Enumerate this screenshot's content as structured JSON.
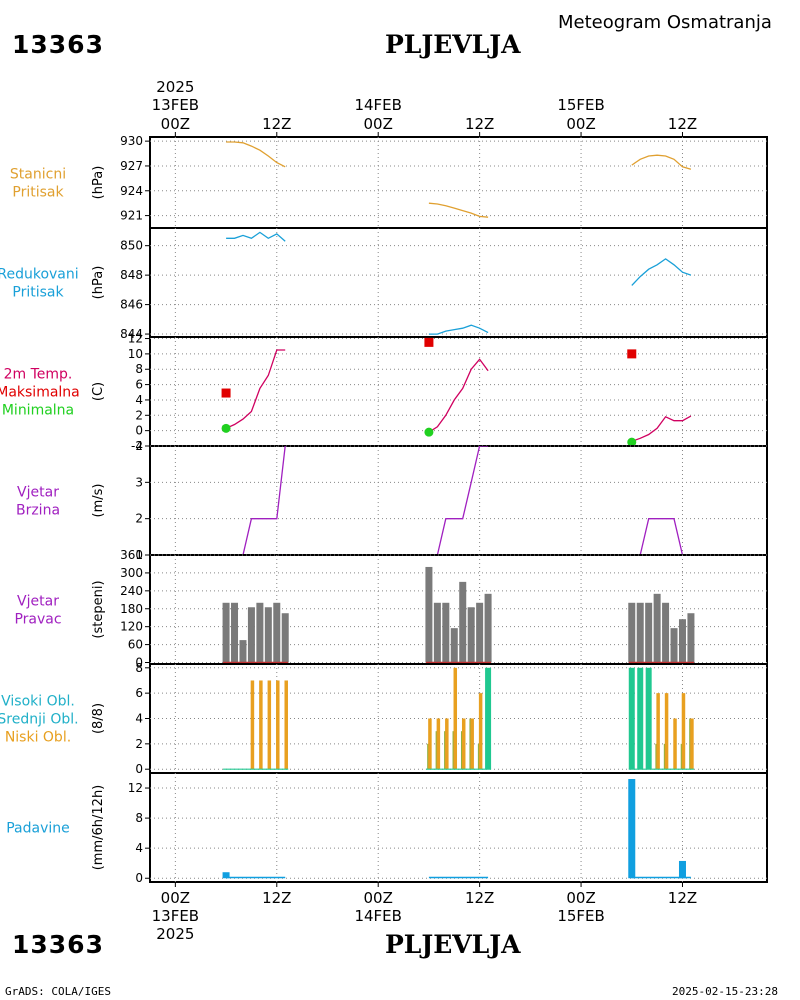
{
  "header": {
    "station_id": "13363",
    "station_name": "PLJEVLJA",
    "title": "Meteogram Osmatranja",
    "year": "2025"
  },
  "footer": {
    "station_id": "13363",
    "station_name": "PLJEVLJA",
    "credit": "GrADS: COLA/IGES",
    "timestamp": "2025-02-15-23:28",
    "year": "2025"
  },
  "time_axis": {
    "day_labels": [
      "13FEB",
      "14FEB",
      "15FEB"
    ],
    "ticks": [
      {
        "hour": 0,
        "label": "00Z",
        "day": "13FEB"
      },
      {
        "hour": 12,
        "label": "12Z",
        "day": ""
      },
      {
        "hour": 24,
        "label": "00Z",
        "day": "14FEB"
      },
      {
        "hour": 36,
        "label": "12Z",
        "day": ""
      },
      {
        "hour": 48,
        "label": "00Z",
        "day": "15FEB"
      },
      {
        "hour": 60,
        "label": "12Z",
        "day": ""
      }
    ],
    "range_hours": [
      -3,
      70
    ]
  },
  "colors": {
    "orange": "#e0a030",
    "cyan": "#1aa0d8",
    "red": "#e00000",
    "green": "#20d020",
    "magenta": "#a020c0",
    "crimson": "#d00060",
    "grey": "#7a7a7a",
    "teal": "#20c890",
    "gold": "#e8a020",
    "olive": "#90b040",
    "blue": "#109fe0",
    "darkred": "#c03030"
  },
  "chart_data": [
    {
      "id": "pressure-station",
      "type": "line",
      "labels": [
        {
          "text": "Stanicni",
          "color": "#e0a030"
        },
        {
          "text": "Pritisak",
          "color": "#e0a030"
        }
      ],
      "ylabel": "(hPa)",
      "ylim": [
        919.5,
        930.5
      ],
      "yticks": [
        921,
        924,
        927,
        930
      ],
      "series": [
        {
          "color": "#e0a030",
          "x": [
            6,
            7,
            8,
            9,
            10,
            11,
            12,
            13
          ],
          "y": [
            929.9,
            929.9,
            929.8,
            929.4,
            928.9,
            928.2,
            927.4,
            926.9
          ]
        },
        {
          "color": "#e0a030",
          "x": [
            30,
            31,
            32,
            33,
            34,
            35,
            36,
            37
          ],
          "y": [
            922.5,
            922.4,
            922.2,
            921.9,
            921.6,
            921.3,
            920.9,
            920.8
          ]
        },
        {
          "color": "#e0a030",
          "x": [
            54,
            55,
            56,
            57,
            58,
            59,
            60,
            61
          ],
          "y": [
            927.1,
            927.8,
            928.2,
            928.3,
            928.2,
            927.8,
            926.9,
            926.6
          ]
        }
      ]
    },
    {
      "id": "pressure-reduced",
      "type": "line",
      "labels": [
        {
          "text": "Redukovani",
          "color": "#1aa0d8"
        },
        {
          "text": "Pritisak",
          "color": "#1aa0d8"
        }
      ],
      "ylabel": "(hPa)",
      "ylim": [
        843.8,
        851.2
      ],
      "yticks": [
        844,
        846,
        848,
        850
      ],
      "series": [
        {
          "color": "#1aa0d8",
          "x": [
            6,
            7,
            8,
            9,
            10,
            11,
            12,
            13
          ],
          "y": [
            850.5,
            850.5,
            850.7,
            850.5,
            850.9,
            850.5,
            850.8,
            850.3
          ]
        },
        {
          "color": "#1aa0d8",
          "x": [
            30,
            31,
            32,
            33,
            34,
            35,
            36,
            37
          ],
          "y": [
            844.0,
            844.0,
            844.2,
            844.3,
            844.4,
            844.6,
            844.4,
            844.1
          ]
        },
        {
          "color": "#1aa0d8",
          "x": [
            54,
            55,
            56,
            57,
            58,
            59,
            60,
            61
          ],
          "y": [
            847.3,
            847.9,
            848.4,
            848.7,
            849.1,
            848.7,
            848.2,
            848.0
          ]
        }
      ]
    },
    {
      "id": "temperature",
      "type": "line",
      "labels": [
        {
          "text": "2m Temp.",
          "color": "#d00060"
        },
        {
          "text": "Maksimalna",
          "color": "#e00000"
        },
        {
          "text": "Minimalna",
          "color": "#20d020"
        }
      ],
      "ylabel": "(C)",
      "ylim": [
        -2,
        12.2
      ],
      "yticks": [
        -2,
        0,
        2,
        4,
        6,
        8,
        10,
        12
      ],
      "series": [
        {
          "color": "#d00060",
          "x": [
            6,
            7,
            8,
            9,
            10,
            11,
            12,
            13
          ],
          "y": [
            0.3,
            0.8,
            1.5,
            2.5,
            5.5,
            7.2,
            10.5,
            10.5
          ]
        },
        {
          "color": "#d00060",
          "x": [
            30,
            31,
            32,
            33,
            34,
            35,
            36,
            37
          ],
          "y": [
            -0.2,
            0.5,
            2.0,
            4.0,
            5.5,
            8.0,
            9.3,
            7.8
          ]
        },
        {
          "color": "#d00060",
          "x": [
            54,
            55,
            56,
            57,
            58,
            59,
            60,
            61
          ],
          "y": [
            -1.4,
            -1.0,
            -0.5,
            0.3,
            1.8,
            1.3,
            1.3,
            1.9
          ]
        }
      ],
      "max_points": {
        "x": [
          6,
          30,
          54
        ],
        "y": [
          4.9,
          11.5,
          10.0
        ],
        "color": "#e00000"
      },
      "min_points": {
        "x": [
          6,
          30,
          54
        ],
        "y": [
          0.3,
          -0.2,
          -1.5
        ],
        "color": "#20d020"
      }
    },
    {
      "id": "wind-speed",
      "type": "line",
      "labels": [
        {
          "text": "Vjetar",
          "color": "#a020c0"
        },
        {
          "text": "Brzina",
          "color": "#a020c0"
        }
      ],
      "ylabel": "(m/s)",
      "ylim": [
        1,
        4
      ],
      "yticks": [
        1,
        2,
        3,
        4
      ],
      "series": [
        {
          "color": "#a020c0",
          "x": [
            6,
            7,
            8,
            9,
            10,
            11,
            12,
            13
          ],
          "y": [
            1,
            1,
            1,
            2,
            2,
            2,
            2,
            4
          ]
        },
        {
          "color": "#a020c0",
          "x": [
            30,
            31,
            32,
            33,
            34,
            35,
            36,
            37
          ],
          "y": [
            1,
            1,
            2,
            2,
            2,
            3,
            4,
            4
          ]
        },
        {
          "color": "#a020c0",
          "x": [
            54,
            55,
            56,
            57,
            58,
            59,
            60,
            61
          ],
          "y": [
            1,
            1,
            2,
            2,
            2,
            2,
            1,
            1
          ]
        }
      ]
    },
    {
      "id": "wind-direction",
      "type": "bar",
      "labels": [
        {
          "text": "Vjetar",
          "color": "#a020c0"
        },
        {
          "text": "Pravac",
          "color": "#a020c0"
        }
      ],
      "ylabel": "(stepeni)",
      "ylim": [
        -5,
        360
      ],
      "yticks": [
        0,
        60,
        120,
        180,
        240,
        300,
        360
      ],
      "bar_color": "#7a7a7a",
      "baseline_color": "#c03030",
      "series": [
        {
          "x": [
            6,
            7,
            8,
            9,
            10,
            11,
            12,
            13
          ],
          "y": [
            200,
            200,
            75,
            185,
            200,
            185,
            200,
            165
          ]
        },
        {
          "x": [
            30,
            31,
            32,
            33,
            34,
            35,
            36,
            37
          ],
          "y": [
            320,
            200,
            200,
            115,
            270,
            185,
            200,
            230
          ]
        },
        {
          "x": [
            54,
            55,
            56,
            57,
            58,
            59,
            60,
            61
          ],
          "y": [
            200,
            200,
            200,
            230,
            200,
            115,
            145,
            165
          ]
        }
      ]
    },
    {
      "id": "clouds",
      "type": "bar",
      "labels": [
        {
          "text": "Visoki Obl.",
          "color": "#20b0c8"
        },
        {
          "text": "Srednji Obl.",
          "color": "#20b0c8"
        },
        {
          "text": "Niski Obl.",
          "color": "#e8a020"
        }
      ],
      "ylabel": "(8/8)",
      "ylim": [
        -0.3,
        8.3
      ],
      "yticks": [
        0,
        2,
        4,
        6,
        8
      ],
      "series": [
        {
          "name": "high",
          "color": "#20c890",
          "x": [
            30,
            31,
            32,
            33,
            34,
            35,
            36,
            37,
            54,
            55,
            56,
            57,
            58,
            59,
            60,
            61
          ],
          "y": [
            0,
            0,
            0,
            0,
            0,
            0,
            0,
            8,
            8,
            8,
            8,
            0,
            0,
            0,
            0,
            0
          ]
        },
        {
          "name": "middle",
          "color": "#90b040",
          "x": [
            30,
            31,
            32,
            33,
            34,
            35,
            36,
            54,
            55,
            56,
            57,
            58,
            59,
            60,
            61
          ],
          "y": [
            2,
            3,
            3,
            3,
            3,
            4,
            2,
            0,
            0,
            0,
            2,
            2,
            0,
            2,
            4
          ]
        },
        {
          "name": "low",
          "color": "#e8a020",
          "x": [
            9,
            10,
            11,
            12,
            13,
            30,
            31,
            32,
            33,
            34,
            35,
            36,
            57,
            58,
            59,
            60,
            61
          ],
          "y": [
            7,
            7,
            7,
            7,
            7,
            4,
            4,
            4,
            8,
            4,
            4,
            6,
            6,
            6,
            4,
            6,
            4
          ]
        }
      ]
    },
    {
      "id": "precipitation",
      "type": "bar",
      "labels": [
        {
          "text": "Padavine",
          "color": "#1aa0d8"
        }
      ],
      "ylabel": "(mm/6h/12h)",
      "ylim": [
        -0.5,
        14
      ],
      "yticks": [
        0,
        4,
        8,
        12
      ],
      "bar_color": "#109fe0",
      "series": [
        {
          "x": [
            6,
            54,
            60
          ],
          "y": [
            0.8,
            13.2,
            2.3
          ]
        }
      ],
      "trace": {
        "x": [
          6,
          13,
          30,
          37,
          54,
          61
        ],
        "y": [
          0.1,
          0.1,
          0.1,
          0.1,
          0.1,
          0.1
        ]
      }
    }
  ]
}
